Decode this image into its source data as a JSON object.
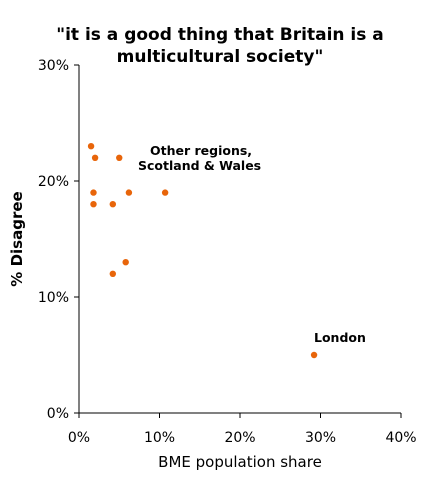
{
  "chart_data": {
    "type": "scatter",
    "title": "\"it is a good thing that Britain is a multicultural society\"",
    "title_lines": [
      "\"it is a good thing that Britain is a",
      "multicultural society\""
    ],
    "xlabel": "BME population share",
    "ylabel": "% Disagree",
    "xlim": [
      0,
      40
    ],
    "ylim": [
      0,
      30
    ],
    "x_ticks": [
      0,
      10,
      20,
      30,
      40
    ],
    "y_ticks": [
      0,
      10,
      20,
      30
    ],
    "x_tick_labels": [
      "0%",
      "10%",
      "20%",
      "30%",
      "40%"
    ],
    "y_tick_labels": [
      "0%",
      "10%",
      "20%",
      "30%"
    ],
    "grid": false,
    "marker_color": "#E8650A",
    "points": [
      {
        "x": 1.5,
        "y": 23
      },
      {
        "x": 2.0,
        "y": 22
      },
      {
        "x": 5.0,
        "y": 22
      },
      {
        "x": 1.8,
        "y": 19
      },
      {
        "x": 6.2,
        "y": 19
      },
      {
        "x": 10.7,
        "y": 19
      },
      {
        "x": 1.8,
        "y": 18
      },
      {
        "x": 4.2,
        "y": 18
      },
      {
        "x": 5.8,
        "y": 13
      },
      {
        "x": 4.2,
        "y": 12
      },
      {
        "x": 29.2,
        "y": 5
      }
    ],
    "annotations": [
      {
        "lines": [
          "Other regions,",
          "Scotland & Wales"
        ]
      },
      {
        "lines": [
          "London"
        ]
      }
    ]
  }
}
